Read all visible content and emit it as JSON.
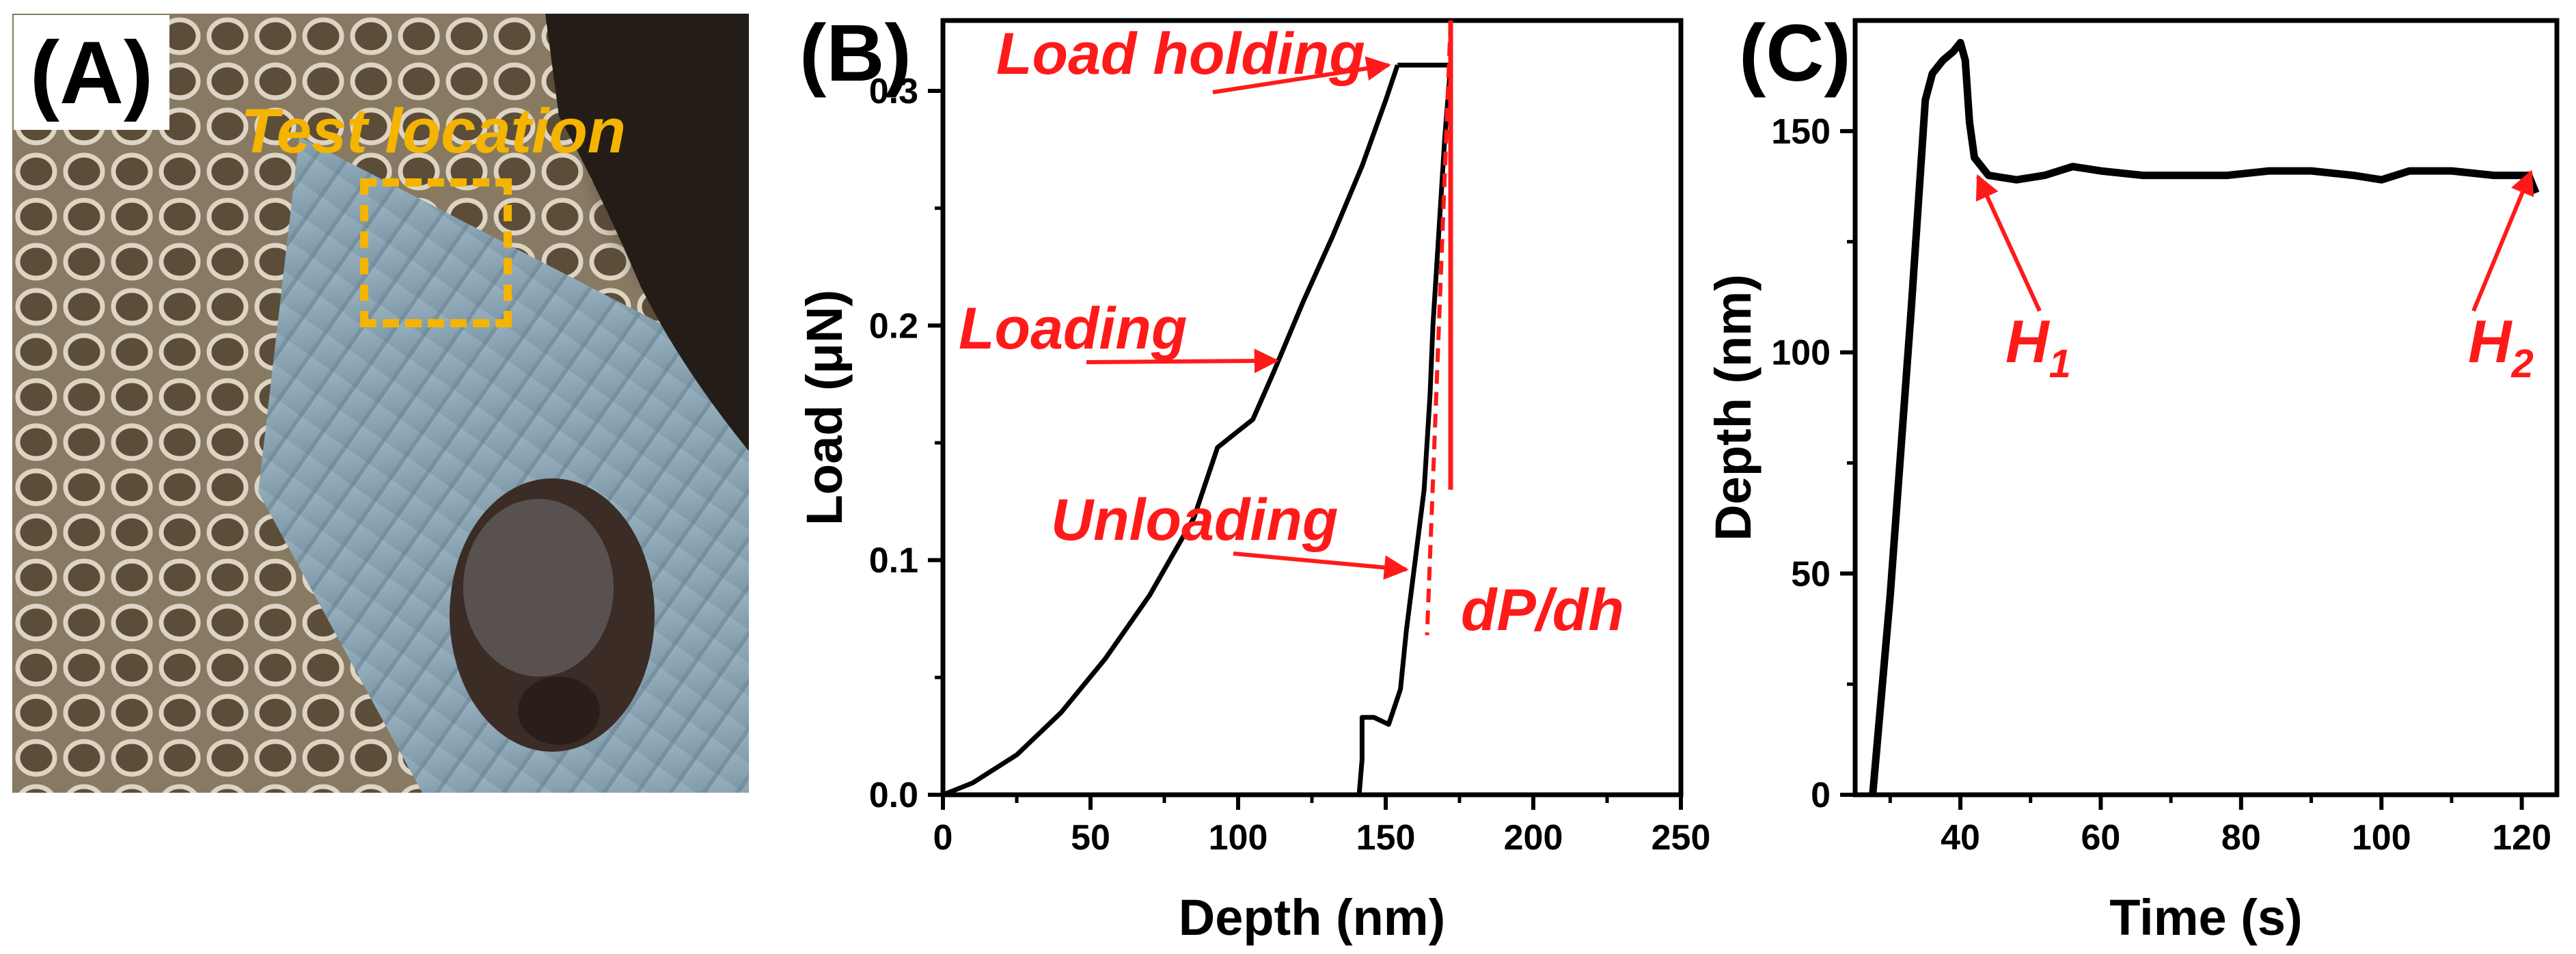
{
  "panel_a": {
    "label": "(A)",
    "annotation": "Test location",
    "annotation_color": "#f5b400"
  },
  "chart_data": [
    {
      "panel": "(B)",
      "type": "line",
      "title": "",
      "xlabel": "Depth (nm)",
      "ylabel": "Load (μN)",
      "xlim": [
        0,
        250
      ],
      "ylim": [
        0,
        0.33
      ],
      "x_ticks": [
        0,
        50,
        100,
        150,
        200,
        250
      ],
      "y_ticks": [
        0.0,
        0.1,
        0.2,
        0.3
      ],
      "y_tick_labels": [
        "0.0",
        "0.1",
        "0.2",
        "0.3"
      ],
      "series": [
        {
          "name": "Loading",
          "points": [
            [
              0,
              0.0
            ],
            [
              10,
              0.005
            ],
            [
              25,
              0.017
            ],
            [
              40,
              0.035
            ],
            [
              55,
              0.058
            ],
            [
              70,
              0.085
            ],
            [
              85,
              0.118
            ],
            [
              93,
              0.148
            ],
            [
              100,
              0.155
            ],
            [
              105,
              0.16
            ],
            [
              112,
              0.18
            ],
            [
              122,
              0.21
            ],
            [
              132,
              0.238
            ],
            [
              142,
              0.268
            ],
            [
              150,
              0.296
            ],
            [
              154,
              0.311
            ]
          ]
        },
        {
          "name": "Load holding",
          "points": [
            [
              154,
              0.311
            ],
            [
              172,
              0.311
            ]
          ]
        },
        {
          "name": "Unloading",
          "points": [
            [
              172,
              0.311
            ],
            [
              170,
              0.28
            ],
            [
              168,
              0.24
            ],
            [
              166,
              0.2
            ],
            [
              165,
              0.17
            ],
            [
              163,
              0.13
            ],
            [
              160,
              0.1
            ],
            [
              157,
              0.07
            ],
            [
              155,
              0.045
            ],
            [
              151,
              0.03
            ],
            [
              146,
              0.033
            ],
            [
              142,
              0.033
            ],
            [
              142,
              0.015
            ],
            [
              141,
              0.0
            ]
          ]
        }
      ],
      "tangent_line": {
        "label": "dP/dh",
        "points": [
          [
            172,
            0.33
          ],
          [
            164,
            0.068
          ]
        ]
      },
      "hold_marker": {
        "points": [
          [
            172,
            0.33
          ],
          [
            172,
            0.13
          ]
        ]
      },
      "annotations": [
        {
          "text": "Load holding",
          "arrow_to": [
            151,
            0.311
          ]
        },
        {
          "text": "Loading",
          "arrow_to": [
            113,
            0.185
          ]
        },
        {
          "text": "Unloading",
          "arrow_to": [
            157,
            0.096
          ]
        },
        {
          "text": "dP/dh"
        }
      ],
      "line_color": "#000000",
      "annotation_color": "#ff1a1a"
    },
    {
      "panel": "(C)",
      "type": "line",
      "title": "",
      "xlabel": "Time (s)",
      "ylabel": "Depth (nm)",
      "xlim": [
        25,
        125
      ],
      "ylim": [
        0,
        175
      ],
      "x_ticks": [
        40,
        60,
        80,
        100,
        120
      ],
      "y_ticks": [
        0,
        50,
        100,
        150
      ],
      "series": [
        {
          "name": "Depth",
          "points": [
            [
              27.5,
              0
            ],
            [
              30,
              45
            ],
            [
              33,
              110
            ],
            [
              35,
              157
            ],
            [
              36,
              163
            ],
            [
              37.5,
              166
            ],
            [
              39,
              168
            ],
            [
              40,
              170
            ],
            [
              40.7,
              166
            ],
            [
              41.3,
              152
            ],
            [
              42,
              144
            ],
            [
              44,
              140
            ],
            [
              48,
              139
            ],
            [
              52,
              140
            ],
            [
              56,
              142
            ],
            [
              60,
              141
            ],
            [
              66,
              140
            ],
            [
              72,
              140
            ],
            [
              78,
              140
            ],
            [
              84,
              141
            ],
            [
              90,
              141
            ],
            [
              96,
              140
            ],
            [
              100,
              139
            ],
            [
              104,
              141
            ],
            [
              110,
              141
            ],
            [
              116,
              140
            ],
            [
              121,
              140
            ],
            [
              122,
              136
            ]
          ]
        }
      ],
      "annotations": [
        {
          "text": "H",
          "subscript": "1",
          "arrow_to": [
            42.5,
            141
          ]
        },
        {
          "text": "H",
          "subscript": "2",
          "arrow_to": [
            121.3,
            142
          ]
        }
      ],
      "line_color": "#000000",
      "annotation_color": "#ff1a1a"
    }
  ]
}
